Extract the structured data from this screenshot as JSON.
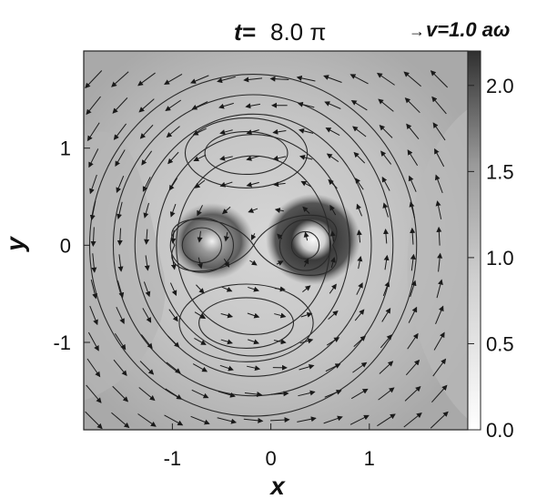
{
  "title": {
    "label": "t=",
    "value": "8.0 π"
  },
  "vector_scale": {
    "arrow": "→",
    "label": "v=1.0 aω"
  },
  "chart_data": {
    "type": "heatmap",
    "title": "t= 8.0 π",
    "xlabel": "x",
    "ylabel": "y",
    "xlim": [
      -1.9,
      2.0
    ],
    "ylim": [
      -1.9,
      2.0
    ],
    "x_ticks": [
      -1,
      0,
      1
    ],
    "y_ticks": [
      -1,
      0,
      1
    ],
    "colorbar": {
      "range": [
        0.0,
        2.2
      ],
      "ticks": [
        "0.0",
        "0.5",
        "1.0",
        "1.5",
        "2.0"
      ],
      "colormap": "white-to-black (grayscale)"
    },
    "density_peaks": [
      {
        "x": -0.7,
        "y": 0.0,
        "value": 1.6
      },
      {
        "x": 0.35,
        "y": 0.0,
        "value": 2.2
      }
    ],
    "overlay": {
      "contours": "lines of constant potential (figure-eight around the two peaks, ovals above and below, circles outside)",
      "vectors": "velocity field arrows, scale v = 1.0 aω"
    },
    "grid": false,
    "legend": "none"
  },
  "colors": {
    "background": "#ffffff",
    "axis": "#111111",
    "contour": "#2a2a2a",
    "arrow": "#1a1a1a"
  }
}
